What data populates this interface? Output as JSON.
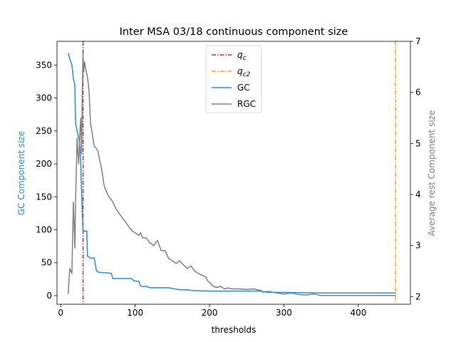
{
  "chart_data": {
    "type": "line",
    "title": "Inter MSA 03/18 continuous component size",
    "xlabel": "thresholds",
    "ylabel_left": "GC Component size",
    "ylabel_right": "Average rest Component size",
    "xlim": [
      -5,
      470
    ],
    "ylim_left": [
      -13,
      386
    ],
    "ylim_right": [
      1.85,
      7.0
    ],
    "xticks": [
      0,
      100,
      200,
      300,
      400
    ],
    "yticks_left": [
      0,
      50,
      100,
      150,
      200,
      250,
      300,
      350
    ],
    "yticks_right": [
      2,
      3,
      4,
      5,
      6,
      7
    ],
    "grid": false,
    "legend_position": "upper center",
    "vlines": [
      {
        "name": "q_c",
        "label_base": "q",
        "label_sub": "c",
        "x": 30,
        "color": "#d62728",
        "dash": "dashdot"
      },
      {
        "name": "q_c2",
        "label_base": "q",
        "label_sub": "c2",
        "x": 450,
        "color": "#ffa500",
        "dash": "dashdot"
      }
    ],
    "series": [
      {
        "name": "GC",
        "axis": "left",
        "color": "#1f8fe8",
        "x": [
          10,
          12,
          15,
          17,
          19,
          20,
          22,
          24,
          26,
          27,
          28,
          29,
          30,
          31,
          35,
          36,
          40,
          45,
          48,
          50,
          55,
          60,
          65,
          68,
          70,
          95,
          98,
          100,
          105,
          107,
          110,
          115,
          120,
          122,
          130,
          145,
          155,
          160,
          170,
          175,
          200,
          220,
          240,
          260,
          270,
          272,
          280,
          300,
          350,
          450
        ],
        "y": [
          368,
          360,
          350,
          330,
          320,
          262,
          250,
          240,
          225,
          200,
          155,
          125,
          100,
          98,
          98,
          60,
          57,
          57,
          38,
          36,
          35,
          35,
          34,
          34,
          26,
          26,
          23,
          22,
          22,
          15,
          14,
          14,
          12,
          12,
          12,
          12,
          10,
          9,
          9,
          8,
          7,
          7,
          7,
          7,
          7,
          6,
          5,
          5,
          4,
          4
        ]
      },
      {
        "name": "RGC",
        "axis": "right",
        "color": "#808080",
        "x": [
          10,
          12,
          15,
          17,
          19,
          20,
          22,
          24,
          25,
          26,
          27,
          28,
          29,
          30,
          31,
          32,
          35,
          36,
          38,
          40,
          45,
          48,
          50,
          52,
          55,
          58,
          60,
          65,
          68,
          70,
          75,
          80,
          85,
          90,
          95,
          100,
          105,
          107,
          110,
          115,
          120,
          125,
          130,
          135,
          140,
          142,
          145,
          150,
          155,
          160,
          165,
          170,
          175,
          180,
          185,
          190,
          195,
          198,
          200,
          205,
          210,
          215,
          220,
          225,
          230,
          240,
          250,
          260,
          265,
          270,
          272,
          275,
          280,
          290,
          300,
          310,
          320,
          330,
          340,
          350,
          360,
          370,
          400,
          450
        ],
        "y": [
          2.05,
          2.55,
          2.45,
          3.85,
          2.95,
          3.9,
          5.1,
          4.6,
          4.9,
          5.3,
          5.5,
          4.8,
          6.0,
          6.75,
          6.4,
          6.6,
          6.35,
          6.3,
          6.05,
          5.4,
          4.95,
          4.9,
          4.85,
          4.7,
          4.5,
          4.2,
          4.1,
          3.95,
          3.9,
          3.85,
          3.7,
          3.6,
          3.5,
          3.4,
          3.3,
          3.25,
          3.2,
          3.25,
          3.15,
          3.15,
          3.05,
          3.0,
          3.1,
          2.9,
          2.9,
          2.85,
          2.75,
          2.7,
          2.65,
          2.7,
          2.62,
          2.55,
          2.6,
          2.5,
          2.45,
          2.42,
          2.38,
          2.3,
          2.28,
          2.2,
          2.18,
          2.2,
          2.15,
          2.17,
          2.15,
          2.15,
          2.14,
          2.15,
          2.13,
          2.12,
          2.08,
          2.1,
          2.1,
          2.07,
          2.05,
          2.07,
          2.04,
          2.03,
          2.05,
          2.02,
          2.02,
          2.02,
          2.02,
          2.02
        ]
      }
    ]
  }
}
